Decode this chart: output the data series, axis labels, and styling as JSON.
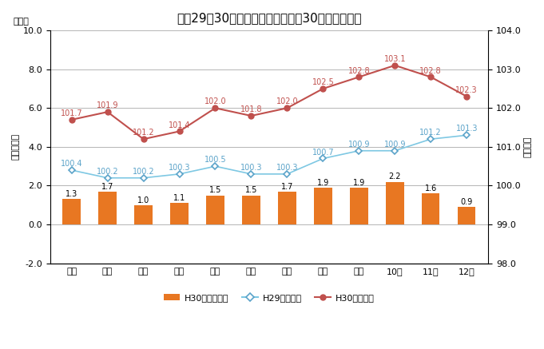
{
  "title": "平成29・30年の総合指数及び平成30年前年同月比",
  "months": [
    "１月",
    "２月",
    "３月",
    "４月",
    "５月",
    "６月",
    "７月",
    "８月",
    "９月",
    "10月",
    "11月",
    "12月"
  ],
  "h30_bar": [
    1.3,
    1.7,
    1.0,
    1.1,
    1.5,
    1.5,
    1.7,
    1.9,
    1.9,
    2.2,
    1.6,
    0.9
  ],
  "h29_index": [
    100.4,
    100.2,
    100.2,
    100.3,
    100.5,
    100.3,
    100.3,
    100.7,
    100.9,
    100.9,
    101.2,
    101.3
  ],
  "h30_index": [
    101.7,
    101.9,
    101.2,
    101.4,
    102.0,
    101.8,
    102.0,
    102.5,
    102.8,
    103.1,
    102.8,
    102.3
  ],
  "bar_color": "#E87722",
  "h29_line_color": "#7EC8E3",
  "h29_marker_color": "#5BA3C9",
  "h30_line_color": "#C0504D",
  "left_ylabel": "前年同月比",
  "right_ylabel": "総合指数",
  "left_label_pct": "（％）",
  "left_ylim": [
    -2.0,
    10.0
  ],
  "right_ylim": [
    98.0,
    104.0
  ],
  "left_yticks": [
    -2.0,
    0.0,
    2.0,
    4.0,
    6.0,
    8.0,
    10.0
  ],
  "right_yticks": [
    98.0,
    99.0,
    100.0,
    101.0,
    102.0,
    103.0,
    104.0
  ],
  "legend_bar": "H30前年同月比",
  "legend_h29": "H29総合指数",
  "legend_h30": "H30総合指数",
  "title_fontsize": 11,
  "tick_fontsize": 8,
  "label_fontsize": 8,
  "annot_fontsize": 7,
  "bg_color": "#FFFFFF",
  "grid_color": "#AAAAAA",
  "bar_width": 0.5
}
